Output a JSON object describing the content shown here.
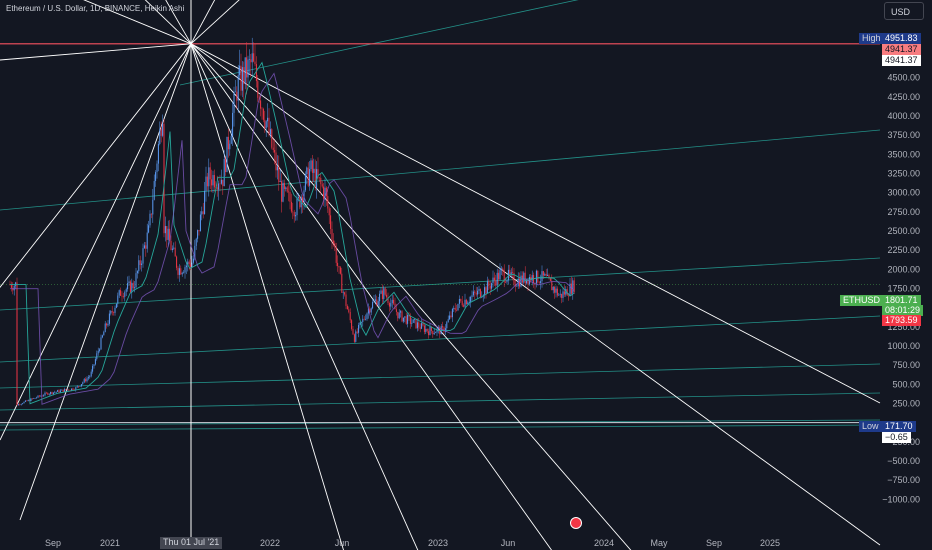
{
  "title": "Ethereum / U.S. Dollar, 1D, BINANCE, Heikin Ashi",
  "currency_button": "USD",
  "price_axis": {
    "ticks": [
      "4750.00",
      "4500.00",
      "4250.00",
      "4000.00",
      "3750.00",
      "3500.00",
      "3250.00",
      "3000.00",
      "2750.00",
      "2500.00",
      "2250.00",
      "2000.00",
      "1750.00",
      "1500.00",
      "1250.00",
      "1000.00",
      "750.00",
      "500.00",
      "250.00",
      "−250.00",
      "−500.00",
      "−750.00",
      "−1000.00"
    ]
  },
  "time_axis": {
    "ticks": [
      "Sep",
      "2021",
      "2022",
      "Jun",
      "2023",
      "Jun",
      "2024",
      "May",
      "Sep",
      "2025"
    ],
    "crosshair_label": "Thu 01 Jul '21"
  },
  "tags": {
    "high_label": "High",
    "high_value": "4951.83",
    "hline_value_top": "4941.37",
    "hline_value_bottom": "4941.37",
    "symbol": "ETHUSD",
    "last_price": "1801.71",
    "countdown": "08:01:29",
    "bid_price": "1793.59",
    "low_label": "Low",
    "low_value": "171.70",
    "zero_line_value": "−0.65"
  },
  "colors": {
    "background": "#131722",
    "up_candle": "#5b9cf6",
    "down_candle": "#f23645",
    "fan_lines": "#ffffff",
    "channel_lines": "#26a69a",
    "high_line": "#f7525f",
    "last_price_tag": "#4caf50",
    "bid_tag": "#f23645",
    "high_low_tag": "#1e3a8a"
  },
  "chart_data": {
    "type": "line",
    "title": "Ethereum / U.S. Dollar, 1D, BINANCE, Heikin Ashi",
    "xlabel": "",
    "ylabel": "",
    "ylim": [
      -1150,
      5050
    ],
    "x_range": [
      "2020-07",
      "2025-06"
    ],
    "grid": false,
    "series": [
      {
        "name": "",
        "x": [
          "2020-07",
          "2020-09",
          "2020-11",
          "2020-12",
          "2021-01",
          "2021-02",
          "2021-03",
          "2021-04",
          "2021-05",
          "2021-05",
          "2021-06",
          "2021-07",
          "2021-08",
          "2021-09",
          "2021-10",
          "2021-11",
          "2021-12",
          "2022-01",
          "2022-02",
          "2022-03",
          "2022-04",
          "2022-05",
          "2022-06",
          "2022-07",
          "2022-08",
          "2022-09",
          "2022-10",
          "2022-11",
          "2022-12",
          "2023-01",
          "2023-02",
          "2023-03",
          "2023-04",
          "2023-05",
          "2023-06",
          "2023-07",
          "2023-08",
          "2023-09"
        ],
        "values": [
          230,
          380,
          450,
          620,
          1250,
          1700,
          1800,
          2500,
          4200,
          2600,
          2000,
          2100,
          3200,
          3200,
          4400,
          4700,
          3900,
          3000,
          2800,
          3300,
          3000,
          1900,
          1100,
          1500,
          1700,
          1400,
          1300,
          1200,
          1200,
          1550,
          1650,
          1750,
          1950,
          1850,
          1900,
          1880,
          1650,
          1801
        ]
      }
    ],
    "annotations": {
      "horizontal_lines": [
        4941.37,
        -0.65
      ],
      "high": 4951.83,
      "low": 171.7,
      "last_price": 1801.71,
      "bid_price": 1793.59,
      "pivot_date": "2021-07-01"
    }
  }
}
